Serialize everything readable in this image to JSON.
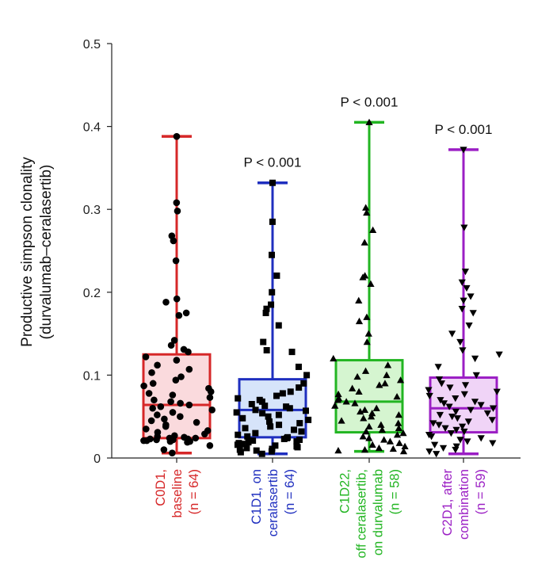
{
  "chart_data": {
    "type": "box",
    "ylabel": [
      "Productive simpson clonality",
      "(durvalumab–ceralasertib)"
    ],
    "ylim": [
      0,
      0.5
    ],
    "yticks": [
      {
        "value": 0,
        "label": "0"
      },
      {
        "value": 0.1,
        "label": "0.1"
      },
      {
        "value": 0.2,
        "label": "0.2"
      },
      {
        "value": 0.3,
        "label": "0.3"
      },
      {
        "value": 0.4,
        "label": "0.4"
      },
      {
        "value": 0.5,
        "label": "0.5"
      }
    ],
    "groups": [
      {
        "label_lines": [
          "C0D1,",
          "baseline",
          "(n = 64)"
        ],
        "color": "#d62728",
        "fill": "#fadadd",
        "marker": "circle",
        "whisker_low": 0.006,
        "q1": 0.024,
        "median": 0.064,
        "q3": 0.125,
        "whisker_high": 0.388,
        "p_value": "",
        "points": [
          0.388,
          0.308,
          0.298,
          0.268,
          0.262,
          0.238,
          0.192,
          0.188,
          0.175,
          0.172,
          0.142,
          0.136,
          0.131,
          0.128,
          0.122,
          0.118,
          0.112,
          0.107,
          0.103,
          0.098,
          0.094,
          0.09,
          0.087,
          0.084,
          0.08,
          0.078,
          0.076,
          0.073,
          0.07,
          0.068,
          0.066,
          0.064,
          0.062,
          0.06,
          0.058,
          0.055,
          0.052,
          0.05,
          0.047,
          0.045,
          0.043,
          0.04,
          0.038,
          0.035,
          0.033,
          0.031,
          0.029,
          0.027,
          0.026,
          0.025,
          0.024,
          0.024,
          0.023,
          0.023,
          0.022,
          0.022,
          0.021,
          0.021,
          0.02,
          0.02,
          0.019,
          0.015,
          0.01,
          0.006
        ]
      },
      {
        "label_lines": [
          "C1D1, on",
          "ceralasertib",
          "(n = 64)"
        ],
        "color": "#1f2fbf",
        "fill": "#d6e4fa",
        "marker": "square",
        "whisker_low": 0.005,
        "q1": 0.025,
        "median": 0.058,
        "q3": 0.095,
        "whisker_high": 0.332,
        "p_value": "P < 0.001",
        "points": [
          0.332,
          0.285,
          0.245,
          0.22,
          0.2,
          0.185,
          0.18,
          0.175,
          0.16,
          0.14,
          0.13,
          0.128,
          0.11,
          0.1,
          0.09,
          0.085,
          0.08,
          0.078,
          0.075,
          0.072,
          0.07,
          0.068,
          0.065,
          0.063,
          0.062,
          0.06,
          0.058,
          0.057,
          0.055,
          0.054,
          0.052,
          0.05,
          0.048,
          0.046,
          0.044,
          0.042,
          0.04,
          0.038,
          0.036,
          0.034,
          0.032,
          0.03,
          0.028,
          0.026,
          0.025,
          0.024,
          0.023,
          0.022,
          0.021,
          0.02,
          0.019,
          0.018,
          0.017,
          0.016,
          0.015,
          0.014,
          0.013,
          0.012,
          0.011,
          0.01,
          0.009,
          0.008,
          0.007,
          0.005
        ]
      },
      {
        "label_lines": [
          "C1D22,",
          "off ceralasertib,",
          "on durvalumab",
          "(n = 58)"
        ],
        "color": "#22b522",
        "fill": "#d5f5d0",
        "marker": "triangle-up",
        "whisker_low": 0.008,
        "q1": 0.031,
        "median": 0.068,
        "q3": 0.118,
        "whisker_high": 0.405,
        "p_value": "P < 0.001",
        "points": [
          0.405,
          0.302,
          0.296,
          0.275,
          0.26,
          0.22,
          0.218,
          0.21,
          0.19,
          0.17,
          0.165,
          0.15,
          0.14,
          0.12,
          0.112,
          0.105,
          0.1,
          0.098,
          0.094,
          0.09,
          0.088,
          0.084,
          0.08,
          0.077,
          0.074,
          0.072,
          0.07,
          0.068,
          0.066,
          0.063,
          0.06,
          0.058,
          0.056,
          0.054,
          0.052,
          0.05,
          0.048,
          0.045,
          0.042,
          0.04,
          0.038,
          0.036,
          0.034,
          0.032,
          0.03,
          0.028,
          0.026,
          0.024,
          0.022,
          0.02,
          0.018,
          0.016,
          0.014,
          0.012,
          0.011,
          0.01,
          0.009,
          0.008
        ]
      },
      {
        "label_lines": [
          "C2D1, after",
          "combination",
          "(n = 59)"
        ],
        "color": "#9b1fc4",
        "fill": "#f0d4f7",
        "marker": "triangle-down",
        "whisker_low": 0.005,
        "q1": 0.031,
        "median": 0.06,
        "q3": 0.097,
        "whisker_high": 0.372,
        "p_value": "P < 0.001",
        "points": [
          0.372,
          0.278,
          0.225,
          0.212,
          0.205,
          0.195,
          0.19,
          0.18,
          0.175,
          0.16,
          0.15,
          0.14,
          0.13,
          0.125,
          0.12,
          0.11,
          0.1,
          0.095,
          0.09,
          0.088,
          0.085,
          0.082,
          0.08,
          0.077,
          0.075,
          0.072,
          0.07,
          0.068,
          0.066,
          0.064,
          0.062,
          0.06,
          0.058,
          0.056,
          0.054,
          0.052,
          0.05,
          0.048,
          0.046,
          0.044,
          0.042,
          0.04,
          0.038,
          0.036,
          0.034,
          0.032,
          0.03,
          0.028,
          0.026,
          0.024,
          0.022,
          0.02,
          0.018,
          0.016,
          0.014,
          0.012,
          0.01,
          0.008,
          0.005
        ]
      }
    ]
  }
}
